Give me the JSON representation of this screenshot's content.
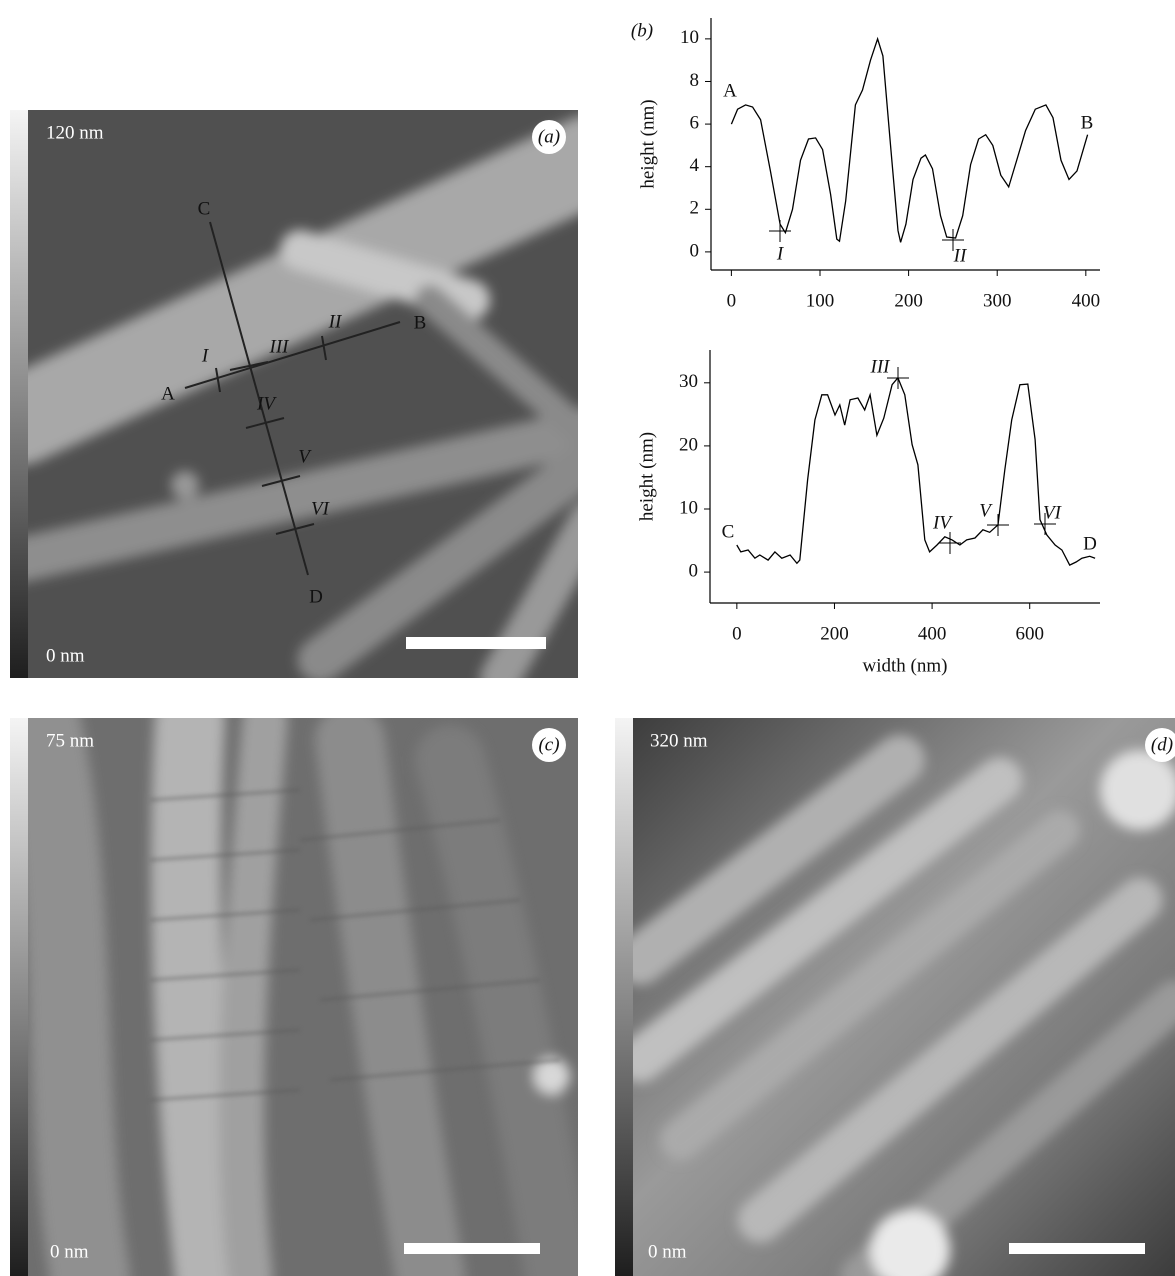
{
  "panels": [
    {
      "label": "(a)",
      "scale_top": "120 nm",
      "scale_bottom": "0 nm",
      "markers": [
        "A",
        "B",
        "C",
        "D",
        "I",
        "II",
        "III",
        "IV",
        "V",
        "VI"
      ]
    },
    {
      "label": "(c)",
      "scale_top": "75 nm",
      "scale_bottom": "0 nm"
    },
    {
      "label": "(d)",
      "scale_top": "320 nm",
      "scale_bottom": "0 nm"
    }
  ],
  "chart_data": [
    {
      "type": "line",
      "panel_label": "(b)",
      "ylabel": "height (nm)",
      "color": "#000000",
      "x": [
        0,
        7,
        16,
        24,
        33,
        44,
        55,
        61,
        69,
        78,
        87,
        95,
        103,
        112,
        119,
        122,
        129,
        140,
        148,
        157,
        165,
        171,
        180,
        188,
        191,
        197,
        205,
        214,
        219,
        227,
        236,
        243,
        253,
        261,
        270,
        279,
        287,
        295,
        304,
        313,
        322,
        332,
        343,
        355,
        363,
        372,
        381,
        390,
        402
      ],
      "values": [
        6.0,
        6.7,
        6.9,
        6.8,
        6.2,
        3.8,
        1.3,
        0.9,
        2.0,
        4.3,
        5.3,
        5.35,
        4.8,
        2.7,
        0.6,
        0.5,
        2.4,
        6.9,
        7.6,
        9.0,
        10.0,
        9.2,
        4.8,
        1.0,
        0.45,
        1.3,
        3.4,
        4.4,
        4.55,
        3.9,
        1.7,
        0.7,
        0.65,
        1.7,
        4.1,
        5.3,
        5.5,
        5.0,
        3.6,
        3.05,
        4.3,
        5.7,
        6.7,
        6.9,
        6.3,
        4.3,
        3.4,
        3.8,
        5.5
      ],
      "xlim": [
        -23,
        416
      ],
      "ylim": [
        -0.85,
        10.98
      ],
      "xticks": [
        0,
        100,
        200,
        300,
        400
      ],
      "yticks": [
        0,
        2,
        4,
        6,
        8,
        10
      ],
      "annotations": [
        "A",
        "B",
        "I",
        "II"
      ]
    },
    {
      "type": "line",
      "xlabel": "width (nm)",
      "ylabel": "height (nm)",
      "color": "#000000",
      "x": [
        0,
        8,
        23,
        37,
        47,
        64,
        78,
        92,
        109,
        123,
        129,
        145,
        160,
        174,
        186,
        201,
        211,
        221,
        232,
        248,
        262,
        273,
        287,
        301,
        318,
        330,
        344,
        359,
        371,
        385,
        395,
        410,
        426,
        441,
        457,
        471,
        488,
        504,
        518,
        535,
        549,
        563,
        580,
        596,
        611,
        621,
        635,
        652,
        666,
        682,
        695,
        707,
        723,
        734
      ],
      "values": [
        4.3,
        3.2,
        3.5,
        2.2,
        2.7,
        1.9,
        3.2,
        2.2,
        2.7,
        1.4,
        1.9,
        14.6,
        24.1,
        28.1,
        28.1,
        24.9,
        26.5,
        23.3,
        27.3,
        27.6,
        25.7,
        28.1,
        21.7,
        24.4,
        29.7,
        30.8,
        28.1,
        20.2,
        17.0,
        5.1,
        3.2,
        4.3,
        5.6,
        5.1,
        4.3,
        5.1,
        5.4,
        6.7,
        6.3,
        7.5,
        16.2,
        24.1,
        29.7,
        29.8,
        21.0,
        8.3,
        5.9,
        4.3,
        3.5,
        1.1,
        1.6,
        2.2,
        2.5,
        2.2
      ],
      "xlim": [
        -55,
        744
      ],
      "ylim": [
        -4.9,
        35.2
      ],
      "xticks": [
        0,
        200,
        400,
        600
      ],
      "yticks": [
        0,
        10,
        20,
        30
      ],
      "annotations": [
        "C",
        "D",
        "III",
        "IV",
        "V",
        "VI"
      ]
    }
  ]
}
